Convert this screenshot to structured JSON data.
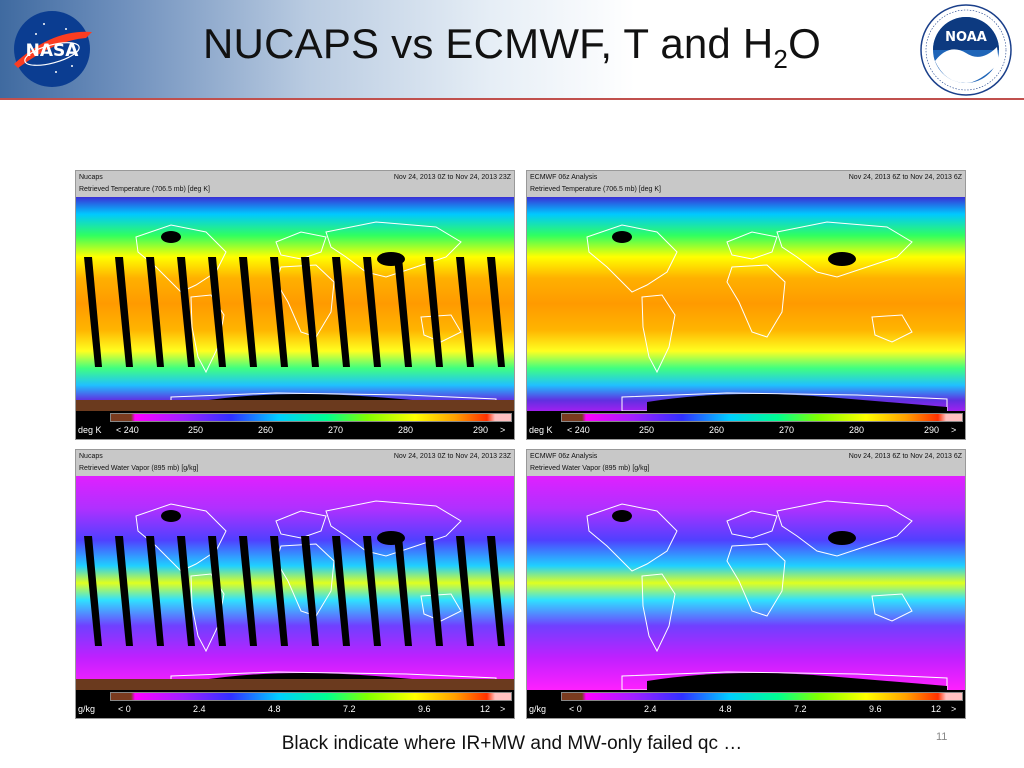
{
  "slide": {
    "title_main": "NUCAPS vs ECMWF, T and H",
    "title_sub": "2",
    "title_end": "O",
    "caption": "Black indicate where IR+MW and MW-only failed qc …",
    "page_number": "11",
    "rule_color": "#c0504d"
  },
  "logos": {
    "nasa_text": "NASA",
    "noaa_text": "NOAA"
  },
  "panels": {
    "nucaps_temp": {
      "source": "Nucaps",
      "time": "Nov 24, 2013  0Z to Nov 24, 2013  23Z",
      "field": "Retrieved Temperature (706.5 mb) [deg K]",
      "unit": "deg K",
      "ticks": [
        "< 240",
        "250",
        "260",
        "270",
        "280",
        "290",
        ">"
      ]
    },
    "ecmwf_temp": {
      "source": "ECMWF 06z Analysis",
      "time": "Nov 24, 2013  6Z to Nov 24, 2013  6Z",
      "field": "Retrieved Temperature (706.5 mb) [deg K]",
      "unit": "deg K",
      "ticks": [
        "< 240",
        "250",
        "260",
        "270",
        "280",
        "290",
        ">"
      ]
    },
    "nucaps_wv": {
      "source": "Nucaps",
      "time": "Nov 24, 2013  0Z to Nov 24, 2013  23Z",
      "field": "Retrieved Water Vapor (895 mb) [g/kg]",
      "unit": "g/kg",
      "ticks": [
        "< 0",
        "2.4",
        "4.8",
        "7.2",
        "9.6",
        "12",
        ">"
      ]
    },
    "ecmwf_wv": {
      "source": "ECMWF 06z Analysis",
      "time": "Nov 24, 2013  6Z to Nov 24, 2013  6Z",
      "field": "Retrieved Water Vapor (895 mb) [g/kg]",
      "unit": "g/kg",
      "ticks": [
        "< 0",
        "2.4",
        "4.8",
        "7.2",
        "9.6",
        "12",
        ">"
      ]
    }
  }
}
